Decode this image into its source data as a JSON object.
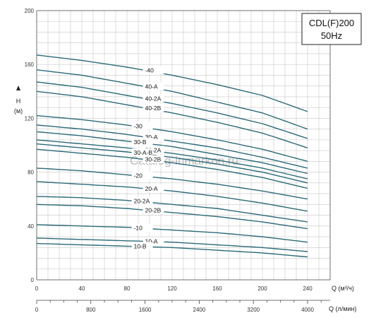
{
  "chart_data": {
    "type": "line",
    "title": "CDL(F)200",
    "subtitle": "50Hz",
    "watermark": "Catalog-inmarkon.ru",
    "ylabel": "H",
    "yunit": "(м)",
    "xlabel": "Q (м³/ч)",
    "x2label": "Q (л/мин)",
    "xlim": [
      0,
      260
    ],
    "ylim": [
      0,
      200
    ],
    "x_ticks": [
      "0",
      "40",
      "80",
      "120",
      "160",
      "200",
      "240"
    ],
    "x2_ticks": [
      "0",
      "800",
      "1600",
      "2400",
      "3200",
      "4000"
    ],
    "y_ticks": [
      "0",
      "40",
      "80",
      "120",
      "160",
      "200"
    ],
    "grid": true,
    "line_color": "#2c6a78",
    "series": [
      {
        "name": "-40",
        "x": [
          0,
          40,
          80,
          120,
          160,
          200,
          240
        ],
        "y": [
          167,
          163,
          158,
          152,
          145,
          137,
          125
        ]
      },
      {
        "name": "40-A",
        "x": [
          0,
          40,
          80,
          120,
          160,
          200,
          240
        ],
        "y": [
          156,
          152,
          146,
          140,
          132,
          124,
          112
        ]
      },
      {
        "name": "40-2A",
        "x": [
          0,
          40,
          80,
          120,
          160,
          200,
          240
        ],
        "y": [
          147,
          143,
          137,
          131,
          124,
          116,
          105
        ]
      },
      {
        "name": "40-2B",
        "x": [
          0,
          40,
          80,
          120,
          160,
          200,
          240
        ],
        "y": [
          140,
          136,
          130,
          124,
          117,
          109,
          98
        ]
      },
      {
        "name": "-30",
        "x": [
          0,
          40,
          80,
          120,
          160,
          200,
          240
        ],
        "y": [
          122,
          119,
          115,
          110,
          104,
          97,
          88
        ]
      },
      {
        "name": "30-A",
        "x": [
          0,
          40,
          80,
          120,
          160,
          200,
          240
        ],
        "y": [
          115,
          112,
          108,
          103,
          98,
          91,
          83
        ]
      },
      {
        "name": "30-B",
        "x": [
          0,
          40,
          80,
          120,
          160,
          200,
          240
        ],
        "y": [
          110,
          107,
          103,
          99,
          93,
          87,
          79
        ]
      },
      {
        "name": "30-2A",
        "x": [
          0,
          40,
          80,
          120,
          160,
          200,
          240
        ],
        "y": [
          104,
          101,
          98,
          94,
          89,
          83,
          75
        ]
      },
      {
        "name": "30-A-B",
        "x": [
          0,
          40,
          80,
          120,
          160,
          200,
          240
        ],
        "y": [
          101,
          98,
          95,
          91,
          86,
          80,
          72
        ]
      },
      {
        "name": "30-2B",
        "x": [
          0,
          40,
          80,
          120,
          160,
          200,
          240
        ],
        "y": [
          97,
          94,
          91,
          87,
          82,
          76,
          68
        ]
      },
      {
        "name": "-20",
        "x": [
          0,
          40,
          80,
          120,
          160,
          200,
          240
        ],
        "y": [
          83,
          81,
          78,
          75,
          71,
          66,
          60
        ]
      },
      {
        "name": "20-A",
        "x": [
          0,
          40,
          80,
          120,
          160,
          200,
          240
        ],
        "y": [
          73,
          71,
          69,
          66,
          62,
          57,
          51
        ]
      },
      {
        "name": "20-2A",
        "x": [
          0,
          40,
          80,
          120,
          160,
          200,
          240
        ],
        "y": [
          62,
          61,
          59,
          56,
          53,
          48,
          43
        ]
      },
      {
        "name": "20-2B",
        "x": [
          0,
          40,
          80,
          120,
          160,
          200,
          240
        ],
        "y": [
          56,
          55,
          53,
          50,
          47,
          43,
          38
        ]
      },
      {
        "name": "-10",
        "x": [
          0,
          40,
          80,
          120,
          160,
          200,
          240
        ],
        "y": [
          41,
          40,
          39,
          37,
          35,
          32,
          28
        ]
      },
      {
        "name": "10-A",
        "x": [
          0,
          40,
          80,
          120,
          160,
          200,
          240
        ],
        "y": [
          31,
          30,
          29,
          28,
          26,
          24,
          21
        ]
      },
      {
        "name": "10-B",
        "x": [
          0,
          40,
          80,
          120,
          160,
          200,
          240
        ],
        "y": [
          27,
          26,
          25,
          24,
          22,
          20,
          17
        ]
      }
    ],
    "label_x": [
      96,
      96,
      96,
      96,
      86,
      96,
      86,
      96,
      86,
      96,
      86,
      96,
      86,
      96,
      86,
      96,
      86
    ]
  }
}
